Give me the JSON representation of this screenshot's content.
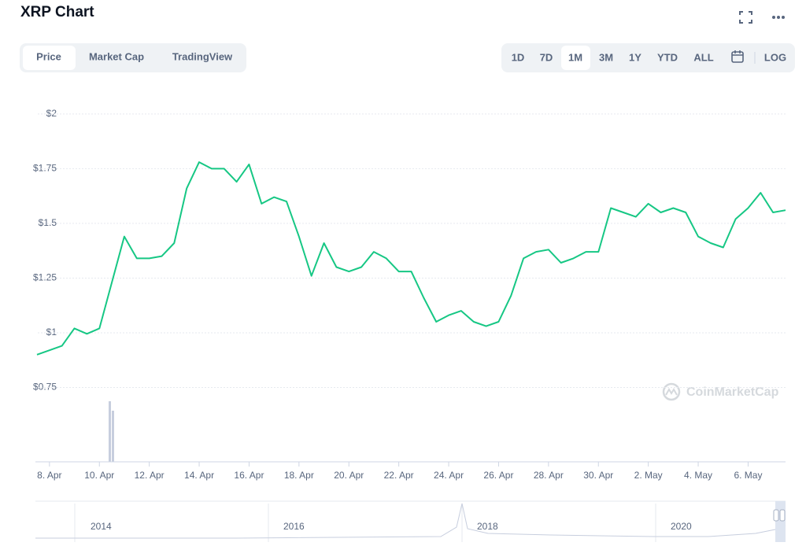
{
  "header": {
    "title": "XRP Chart"
  },
  "tabs": [
    "Price",
    "Market Cap",
    "TradingView"
  ],
  "ranges": [
    "1D",
    "7D",
    "1M",
    "3M",
    "1Y",
    "YTD",
    "ALL",
    "LOG"
  ],
  "watermark": "CoinMarketCap",
  "navigator": {
    "labels": [
      "2014",
      "2016",
      "2018",
      "2020"
    ]
  },
  "chart_data": {
    "type": "line",
    "categories": [
      null,
      "8. Apr",
      null,
      null,
      null,
      "10. Apr",
      null,
      null,
      null,
      "12. Apr",
      null,
      null,
      null,
      "14. Apr",
      null,
      null,
      null,
      "16. Apr",
      null,
      null,
      null,
      "18. Apr",
      null,
      null,
      null,
      "20. Apr",
      null,
      null,
      null,
      "22. Apr",
      null,
      null,
      null,
      "24. Apr",
      null,
      null,
      null,
      "26. Apr",
      null,
      null,
      null,
      "28. Apr",
      null,
      null,
      null,
      "30. Apr",
      null,
      null,
      null,
      "2. May",
      null,
      null,
      null,
      "4. May",
      null,
      null,
      null,
      "6. May",
      null,
      null,
      null
    ],
    "values": [
      0.9,
      0.92,
      0.94,
      1.02,
      0.995,
      1.02,
      1.23,
      1.44,
      1.34,
      1.34,
      1.35,
      1.41,
      1.66,
      1.78,
      1.75,
      1.75,
      1.69,
      1.77,
      1.59,
      1.62,
      1.6,
      1.44,
      1.26,
      1.41,
      1.3,
      1.28,
      1.3,
      1.37,
      1.34,
      1.28,
      1.28,
      1.16,
      1.05,
      1.08,
      1.1,
      1.05,
      1.03,
      1.05,
      1.17,
      1.34,
      1.37,
      1.38,
      1.32,
      1.34,
      1.37,
      1.37,
      1.57,
      1.55,
      1.53,
      1.59,
      1.55,
      1.57,
      1.55,
      1.44,
      1.41,
      1.39,
      1.52,
      1.57,
      1.64,
      1.55,
      1.56
    ],
    "color": "#16c784",
    "ylim": [
      0.41,
      2.05
    ],
    "yticks": [
      {
        "value": 2,
        "label": "$2"
      },
      {
        "value": 1.75,
        "label": "$1.75"
      },
      {
        "value": 1.5,
        "label": "$1.5"
      },
      {
        "value": 1.25,
        "label": "$1.25"
      },
      {
        "value": 1,
        "label": "$1"
      },
      {
        "value": 0.75,
        "label": "$0.75"
      }
    ],
    "grid": true
  }
}
